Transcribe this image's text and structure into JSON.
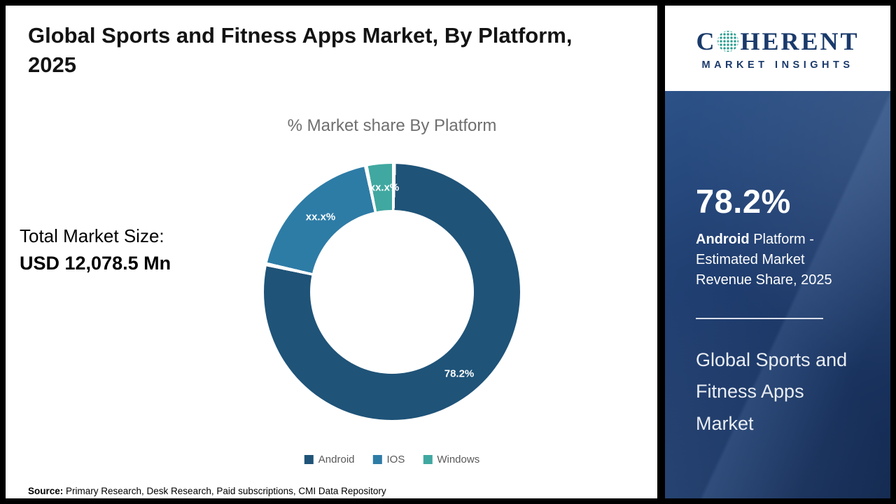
{
  "title": "Global Sports and Fitness Apps Market, By Platform, 2025",
  "total_market": {
    "label": "Total Market Size:",
    "value": "USD 12,078.5 Mn"
  },
  "chart_data": {
    "type": "pie",
    "subtype": "donut",
    "title": "% Market share By Platform",
    "categories": [
      "Android",
      "IOS",
      "Windows"
    ],
    "values": [
      78.2,
      18.3,
      3.5
    ],
    "labels": [
      "78.2%",
      "xx.x%",
      "xx.x%"
    ],
    "colors": [
      "#1f5378",
      "#2d7ca6",
      "#40a8a0"
    ],
    "legend_position": "bottom",
    "start_angle_deg": 0,
    "direction": "clockwise",
    "note": "Android share labeled 78.2%; IOS and Windows labels are masked as xx.x% in the image, numeric values estimated from arc angles."
  },
  "source": {
    "label": "Source:",
    "text": " Primary Research, Desk Research, Paid subscriptions, CMI Data Repository"
  },
  "sidebar": {
    "logo": {
      "line1_left": "C",
      "line1_right": "HERENT",
      "line2": "MARKET INSIGHTS"
    },
    "stat_value": "78.2%",
    "stat_desc_bold": "Android",
    "stat_desc_rest": " Platform - Estimated Market Revenue Share, 2025",
    "market_name": "Global Sports and Fitness Apps Market"
  }
}
